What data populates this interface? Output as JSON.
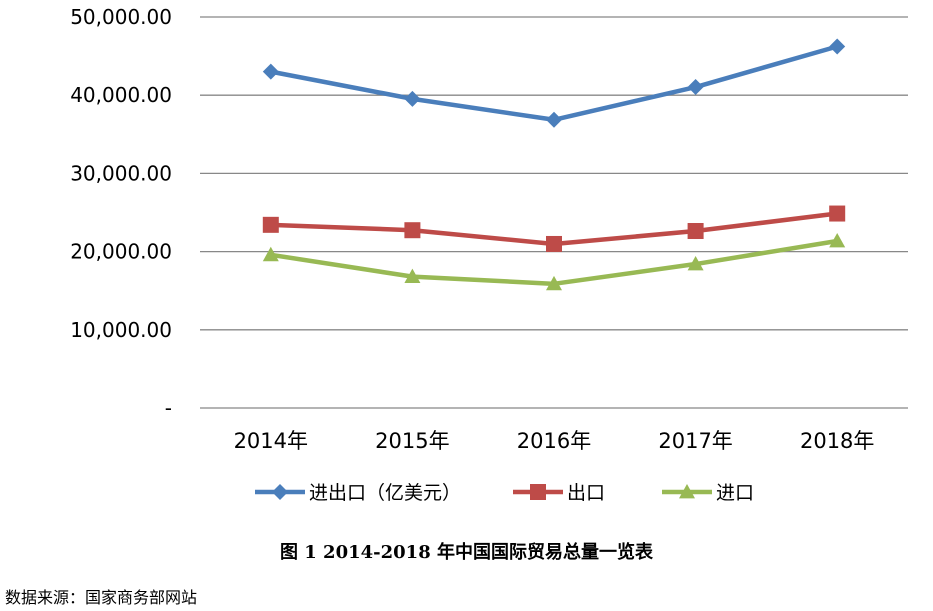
{
  "chart_data": {
    "type": "line",
    "categories": [
      "2014年",
      "2015年",
      "2016年",
      "2017年",
      "2018年"
    ],
    "series": [
      {
        "name": "进出口（亿美元）",
        "color": "#4a7ebb",
        "marker": "diamond",
        "values": [
          43015,
          39530,
          36856,
          41045,
          46230
        ]
      },
      {
        "name": "出口",
        "color": "#be4b48",
        "marker": "square",
        "values": [
          23423,
          22735,
          20976,
          22633,
          24867
        ]
      },
      {
        "name": "进口",
        "color": "#98b954",
        "marker": "triangle",
        "values": [
          19592,
          16796,
          15879,
          18410,
          21356
        ]
      }
    ],
    "ylim": [
      0,
      50000
    ],
    "yticks": [
      0,
      10000,
      20000,
      30000,
      40000,
      50000
    ],
    "ytick_labels": [
      "-",
      "10,000.00",
      "20,000.00",
      "30,000.00",
      "40,000.00",
      "50,000.00"
    ],
    "grid": true,
    "legend": "bottom"
  },
  "caption": "图 1 2014-2018 年中国国际贸易总量一览表",
  "source": "数据来源：国家商务部网站"
}
